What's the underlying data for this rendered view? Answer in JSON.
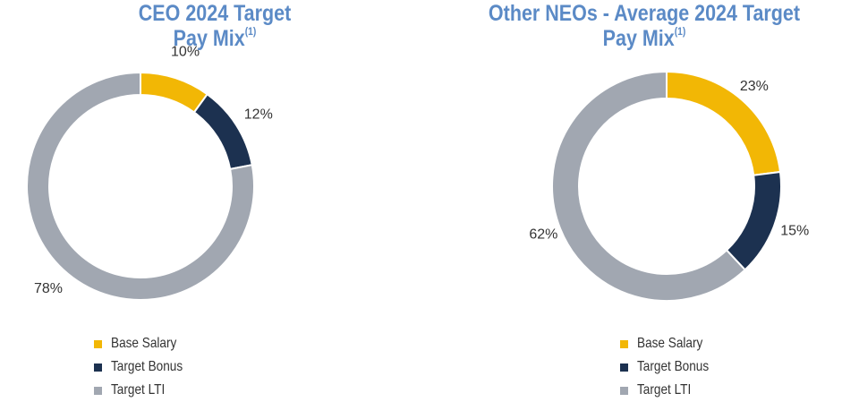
{
  "chart_data": [
    {
      "type": "pie",
      "title": "CEO 2024 Target",
      "title_line2": "Pay Mix",
      "title_sup": "(1)",
      "categories": [
        "Base Salary",
        "Target Bonus",
        "Target LTI"
      ],
      "values": [
        10,
        12,
        78
      ],
      "labels": [
        "10%",
        "12%",
        "78%"
      ],
      "colors": [
        "#f2b705",
        "#1c3150",
        "#a1a7b1"
      ],
      "legend_position": "bottom"
    },
    {
      "type": "pie",
      "title": "Other NEOs - Average 2024 Target",
      "title_line2": "Pay Mix",
      "title_sup": "(1)",
      "categories": [
        "Base Salary",
        "Target Bonus",
        "Target LTI"
      ],
      "values": [
        23,
        15,
        62
      ],
      "labels": [
        "23%",
        "15%",
        "62%"
      ],
      "colors": [
        "#f2b705",
        "#1c3150",
        "#a1a7b1"
      ],
      "legend_position": "bottom"
    }
  ]
}
